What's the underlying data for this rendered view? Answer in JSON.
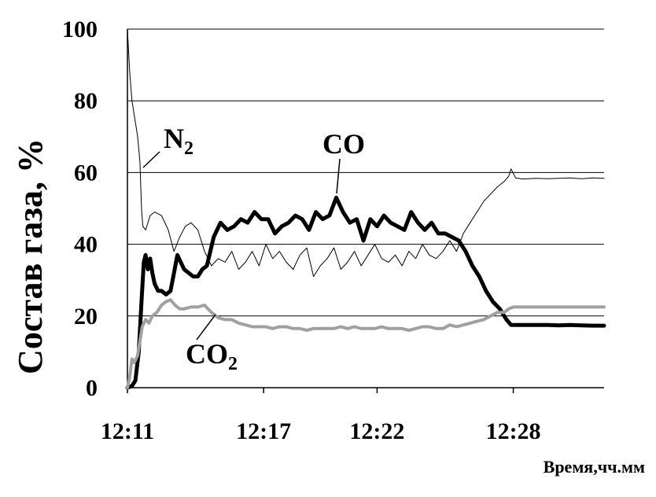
{
  "chart_data": {
    "type": "line",
    "xlabel": "Время,чч.мм",
    "ylabel": "Состав газа, %",
    "x_tick_labels": [
      "12:11",
      "12:17",
      "12:22",
      "12:28"
    ],
    "x_tick_minutes": [
      0,
      6,
      11,
      17
    ],
    "xlim": [
      0,
      21
    ],
    "ylim": [
      0,
      100
    ],
    "y_ticks": [
      0,
      20,
      40,
      60,
      80,
      100
    ],
    "grid": "horizontal",
    "series": [
      {
        "name": "N2",
        "label_main": "N",
        "label_sub": "2",
        "color": "#000000",
        "width": 1,
        "x": [
          0,
          0.1,
          0.2,
          0.3,
          0.45,
          0.55,
          0.62,
          0.68,
          0.8,
          1.0,
          1.2,
          1.5,
          1.8,
          2.05,
          2.3,
          2.55,
          2.8,
          3.1,
          3.4,
          3.7,
          4.0,
          4.3,
          4.6,
          4.9,
          5.2,
          5.5,
          5.8,
          6.1,
          6.4,
          6.7,
          7.0,
          7.3,
          7.6,
          7.9,
          8.2,
          8.5,
          8.8,
          9.1,
          9.4,
          9.7,
          10.0,
          10.3,
          10.6,
          10.9,
          11.2,
          11.5,
          11.8,
          12.1,
          12.4,
          12.7,
          13.0,
          13.3,
          13.6,
          13.9,
          14.2,
          14.5,
          14.8,
          15.1,
          15.4,
          15.7,
          16.0,
          16.3,
          16.6,
          16.8,
          16.9,
          17.1,
          17.4,
          17.7,
          18.0,
          18.5,
          19.0,
          19.5,
          20.0,
          20.5,
          21.0
        ],
        "y": [
          100,
          88,
          80,
          76,
          70,
          63,
          50,
          45,
          44,
          48,
          49,
          48,
          44,
          38,
          42,
          45,
          46,
          44,
          38,
          34,
          36,
          35,
          38,
          33,
          35,
          38,
          34,
          40,
          36,
          38,
          35,
          33,
          37,
          39,
          31,
          34,
          36,
          39,
          33,
          35,
          38,
          34,
          37,
          40,
          36,
          35,
          37,
          34,
          38,
          36,
          40,
          37,
          36,
          38,
          41,
          38,
          43,
          46,
          49,
          52,
          54,
          56,
          57.5,
          59,
          61,
          58.5,
          58.2,
          58.3,
          58.4,
          58.3,
          58.4,
          58.5,
          58.3,
          58.5,
          58.4
        ]
      },
      {
        "name": "CO",
        "label_main": "CO",
        "label_sub": "",
        "color": "#000000",
        "width": 5,
        "x": [
          0,
          0.2,
          0.35,
          0.5,
          0.62,
          0.72,
          0.8,
          0.9,
          1.0,
          1.1,
          1.2,
          1.35,
          1.5,
          1.7,
          1.9,
          2.05,
          2.2,
          2.35,
          2.5,
          2.7,
          2.9,
          3.1,
          3.3,
          3.5,
          3.8,
          4.1,
          4.4,
          4.7,
          5.0,
          5.3,
          5.6,
          5.9,
          6.2,
          6.5,
          6.8,
          7.1,
          7.4,
          7.7,
          8.0,
          8.3,
          8.6,
          8.9,
          9.2,
          9.5,
          9.8,
          10.1,
          10.4,
          10.7,
          11.0,
          11.3,
          11.6,
          11.9,
          12.2,
          12.5,
          12.8,
          13.1,
          13.4,
          13.7,
          14.0,
          14.3,
          14.6,
          14.9,
          15.2,
          15.5,
          15.8,
          16.1,
          16.4,
          16.7,
          16.9,
          17.2,
          17.5,
          18.0,
          18.5,
          19.0,
          19.5,
          20.0,
          20.5,
          21.0
        ],
        "y": [
          0,
          0.5,
          2,
          10,
          24,
          35,
          37,
          33,
          36,
          32,
          29,
          27,
          27,
          26,
          27,
          32,
          37,
          35,
          33,
          32,
          31,
          31,
          33,
          34,
          42,
          46,
          44,
          45,
          47,
          46,
          49,
          47,
          47,
          43,
          45,
          46,
          48,
          47,
          44,
          49,
          47,
          48,
          53,
          49,
          46,
          47,
          41,
          47,
          45,
          48,
          46,
          45,
          44,
          49,
          46,
          44,
          46,
          43,
          43,
          42,
          41,
          38,
          34,
          31,
          27,
          24,
          22,
          19,
          17.5,
          17.5,
          17.5,
          17.5,
          17.5,
          17.4,
          17.5,
          17.4,
          17.3,
          17.3
        ]
      },
      {
        "name": "CO2",
        "label_main": "CO",
        "label_sub": "2",
        "color": "#a0a0a0",
        "width": 4,
        "x": [
          0,
          0.1,
          0.2,
          0.3,
          0.45,
          0.55,
          0.65,
          0.8,
          0.95,
          1.1,
          1.3,
          1.5,
          1.7,
          1.9,
          2.1,
          2.3,
          2.5,
          2.8,
          3.1,
          3.4,
          3.7,
          4.0,
          4.3,
          4.6,
          4.9,
          5.2,
          5.5,
          5.8,
          6.1,
          6.4,
          6.7,
          7.0,
          7.3,
          7.6,
          7.9,
          8.2,
          8.5,
          8.8,
          9.1,
          9.4,
          9.7,
          10.0,
          10.3,
          10.6,
          10.9,
          11.2,
          11.5,
          11.8,
          12.1,
          12.4,
          12.7,
          13.0,
          13.3,
          13.6,
          13.9,
          14.2,
          14.5,
          14.8,
          15.1,
          15.4,
          15.7,
          16.0,
          16.3,
          16.6,
          16.8,
          17.0,
          17.3,
          17.8,
          18.3,
          18.8,
          19.3,
          19.8,
          20.3,
          20.8,
          21.0
        ],
        "y": [
          0,
          3,
          8,
          7,
          9,
          13,
          17,
          19,
          18,
          20,
          21,
          23,
          24,
          24.5,
          23,
          22,
          22,
          22.5,
          22.5,
          23,
          21,
          19.5,
          19,
          19,
          18,
          17.5,
          17,
          17,
          17,
          16.5,
          17,
          17,
          16.5,
          16.5,
          16,
          16.5,
          16.5,
          16.5,
          16.5,
          17,
          16.5,
          17,
          16.5,
          16.5,
          16.5,
          17,
          16.5,
          16.5,
          16.5,
          16,
          16.5,
          17,
          17,
          16.5,
          16.5,
          17.5,
          17,
          17.5,
          18,
          18.5,
          19,
          20,
          21,
          21,
          22,
          22.5,
          22.5,
          22.5,
          22.5,
          22.5,
          22.5,
          22.5,
          22.5,
          22.5,
          22.5
        ]
      }
    ]
  }
}
